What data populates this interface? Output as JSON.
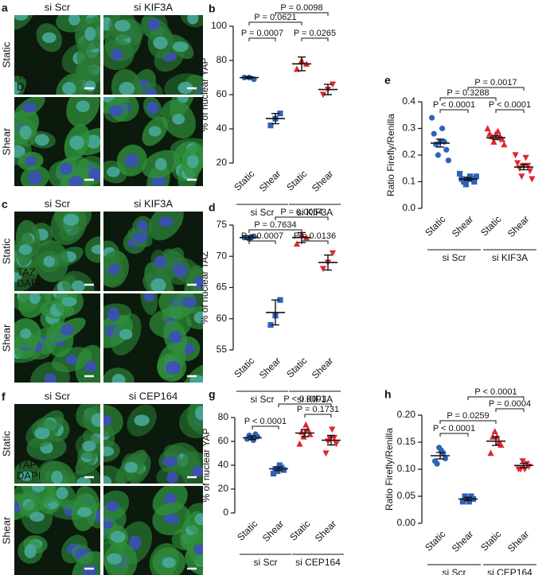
{
  "panels": [
    {
      "label": "a",
      "columns": [
        {
          "name": "si Scr",
          "color": "#3b6fc6"
        },
        {
          "name": "si KIF3A",
          "color": "#e0262f"
        }
      ],
      "rows": [
        "Static",
        "Shear"
      ],
      "stains": [
        {
          "name": "YAP",
          "color": "#86d44a"
        },
        {
          "name": "DAPI",
          "color": "#4f63e0"
        }
      ]
    },
    {
      "label": "c",
      "columns": [
        {
          "name": "si Scr",
          "color": "#3b6fc6"
        },
        {
          "name": "si KIF3A",
          "color": "#e0262f"
        }
      ],
      "rows": [
        "Static",
        "Shear"
      ],
      "stains": [
        {
          "name": "TAZ",
          "color": "#86d44a"
        },
        {
          "name": "DAPI",
          "color": "#4f63e0"
        }
      ]
    },
    {
      "label": "f",
      "columns": [
        {
          "name": "si Scr",
          "color": "#3b6fc6"
        },
        {
          "name": "si CEP164",
          "color": "#e0262f"
        }
      ],
      "rows": [
        "Static",
        "Shear"
      ],
      "stains": [
        {
          "name": "YAP",
          "color": "#86d44a"
        },
        {
          "name": "DAPI",
          "color": "#4f63e0"
        }
      ]
    }
  ],
  "chart_data": [
    {
      "type": "scatter",
      "label": "b",
      "ylabel": "% of nuclear YAP",
      "ylim": [
        20,
        100
      ],
      "yticks": [
        20,
        40,
        60,
        80,
        100
      ],
      "conditions": [
        {
          "name": "si Scr",
          "color": "#3b6fc6"
        },
        {
          "name": "si KIF3A",
          "color": "#e0262f"
        }
      ],
      "groups": [
        {
          "category": "Static",
          "color": "#2e63b8",
          "marker": "circle",
          "points": [
            70,
            70,
            69
          ],
          "mean": 70,
          "error": 0.5
        },
        {
          "category": "Shear",
          "color": "#2e63b8",
          "marker": "square",
          "points": [
            42,
            46,
            49
          ],
          "mean": 46,
          "error": 3
        },
        {
          "category": "Static",
          "color": "#e0262f",
          "marker": "triangle",
          "points": [
            75,
            80,
            78
          ],
          "mean": 78,
          "error": 4
        },
        {
          "category": "Shear",
          "color": "#e0262f",
          "marker": "triangle-down",
          "points": [
            60,
            63,
            66
          ],
          "mean": 63,
          "error": 3
        }
      ],
      "comparisons": [
        {
          "label": "P = 0.0007"
        },
        {
          "label": "P = 0.0621"
        },
        {
          "label": "P = 0.0098"
        },
        {
          "label": "P = 0.0265"
        }
      ]
    },
    {
      "type": "scatter",
      "label": "d",
      "ylabel": "% of nuclear TAZ",
      "ylim": [
        55,
        75
      ],
      "yticks": [
        55,
        60,
        65,
        70,
        75
      ],
      "conditions": [
        {
          "name": "si Scr",
          "color": "#3b6fc6"
        },
        {
          "name": "si KIF3A",
          "color": "#e0262f"
        }
      ],
      "groups": [
        {
          "category": "Static",
          "color": "#2e63b8",
          "marker": "circle",
          "points": [
            73,
            72.8,
            73.2
          ],
          "mean": 73,
          "error": 0.3
        },
        {
          "category": "Shear",
          "color": "#2e63b8",
          "marker": "square",
          "points": [
            59,
            60.5,
            63
          ],
          "mean": 61,
          "error": 2
        },
        {
          "category": "Static",
          "color": "#e0262f",
          "marker": "triangle",
          "points": [
            72,
            73.5,
            73
          ],
          "mean": 73,
          "error": 0.8
        },
        {
          "category": "Shear",
          "color": "#e0262f",
          "marker": "triangle-down",
          "points": [
            68,
            69,
            70.5
          ],
          "mean": 69,
          "error": 1.2
        }
      ],
      "comparisons": [
        {
          "label": "P = 0.0007"
        },
        {
          "label": "P = 0.7634"
        },
        {
          "label": "P = 0.0054"
        },
        {
          "label": "P = 0.0136"
        }
      ]
    },
    {
      "type": "scatter",
      "label": "e",
      "ylabel": "Ratio Firefly/Renilla",
      "ylim": [
        0,
        0.4
      ],
      "yticks": [
        {
          "value": 0,
          "label": "0.0"
        },
        0.1,
        0.2,
        0.3,
        0.4
      ],
      "conditions": [
        {
          "name": "si Scr",
          "color": "#3b6fc6"
        },
        {
          "name": "si KIF3A",
          "color": "#e0262f"
        }
      ],
      "groups": [
        {
          "category": "Static",
          "color": "#2e63b8",
          "marker": "circle",
          "points": [
            0.34,
            0.3,
            0.28,
            0.25,
            0.24,
            0.22,
            0.2,
            0.18,
            0.25
          ],
          "mean": 0.245,
          "error": 0.015
        },
        {
          "category": "Shear",
          "color": "#2e63b8",
          "marker": "square",
          "points": [
            0.13,
            0.12,
            0.11,
            0.11,
            0.1,
            0.1,
            0.09,
            0.12,
            0.11
          ],
          "mean": 0.11,
          "error": 0.005
        },
        {
          "category": "Static",
          "color": "#e0262f",
          "marker": "triangle",
          "points": [
            0.3,
            0.29,
            0.28,
            0.27,
            0.27,
            0.26,
            0.25,
            0.24,
            0.28
          ],
          "mean": 0.265,
          "error": 0.007
        },
        {
          "category": "Shear",
          "color": "#e0262f",
          "marker": "triangle-down",
          "points": [
            0.2,
            0.19,
            0.17,
            0.16,
            0.15,
            0.14,
            0.12,
            0.11,
            0.16
          ],
          "mean": 0.155,
          "error": 0.01
        }
      ],
      "comparisons": [
        {
          "label": "P < 0.0001"
        },
        {
          "label": "P = 0.3288"
        },
        {
          "label": "P = 0.0017"
        },
        {
          "label": "P < 0.0001"
        }
      ]
    },
    {
      "type": "scatter",
      "label": "g",
      "ylabel": "% of nuclear YAP",
      "ylim": [
        0,
        80
      ],
      "yticks": [
        0,
        20,
        40,
        60,
        80
      ],
      "conditions": [
        {
          "name": "si Scr",
          "color": "#3b6fc6"
        },
        {
          "name": "si CEP164",
          "color": "#e0262f"
        }
      ],
      "groups": [
        {
          "category": "Static",
          "color": "#2e63b8",
          "marker": "circle",
          "points": [
            62,
            64,
            66,
            61,
            63,
            65
          ],
          "mean": 63,
          "error": 1.5
        },
        {
          "category": "Shear",
          "color": "#2e63b8",
          "marker": "square",
          "points": [
            33,
            36,
            38,
            40,
            35,
            37
          ],
          "mean": 37,
          "error": 1.5
        },
        {
          "category": "Static",
          "color": "#e0262f",
          "marker": "triangle",
          "points": [
            58,
            66,
            70,
            74,
            64,
            68
          ],
          "mean": 67,
          "error": 3
        },
        {
          "category": "Shear",
          "color": "#e0262f",
          "marker": "triangle-down",
          "points": [
            50,
            58,
            63,
            70,
            62,
            60
          ],
          "mean": 61,
          "error": 4
        }
      ],
      "comparisons": [
        {
          "label": "P < 0.0001"
        },
        {
          "label": "P < 0.0001"
        },
        {
          "label": "P = 0.1731"
        }
      ]
    },
    {
      "type": "scatter",
      "label": "h",
      "ylabel": "Ratio Firefly/Renilla",
      "ylim": [
        0,
        0.2
      ],
      "yticks": [
        {
          "value": 0,
          "label": "0.00"
        },
        {
          "value": 0.05,
          "label": "0.05"
        },
        {
          "value": 0.1,
          "label": "0.10"
        },
        {
          "value": 0.15,
          "label": "0.15"
        },
        {
          "value": 0.2,
          "label": "0.20"
        }
      ],
      "conditions": [
        {
          "name": "si Scr",
          "color": "#3b6fc6"
        },
        {
          "name": "si CEP164",
          "color": "#e0262f"
        }
      ],
      "groups": [
        {
          "category": "Static",
          "color": "#2e63b8",
          "marker": "circle",
          "points": [
            0.115,
            0.12,
            0.13,
            0.135,
            0.14,
            0.11
          ],
          "mean": 0.125,
          "error": 0.006
        },
        {
          "category": "Shear",
          "color": "#2e63b8",
          "marker": "square",
          "points": [
            0.04,
            0.045,
            0.05,
            0.04,
            0.045,
            0.05
          ],
          "mean": 0.045,
          "error": 0.003
        },
        {
          "category": "Static",
          "color": "#e0262f",
          "marker": "triangle",
          "points": [
            0.13,
            0.145,
            0.15,
            0.16,
            0.17,
            0.16
          ],
          "mean": 0.152,
          "error": 0.008
        },
        {
          "category": "Shear",
          "color": "#e0262f",
          "marker": "triangle-down",
          "points": [
            0.1,
            0.105,
            0.11,
            0.1,
            0.115,
            0.1
          ],
          "mean": 0.107,
          "error": 0.004
        }
      ],
      "comparisons": [
        {
          "label": "P < 0.0001"
        },
        {
          "label": "P = 0.0259"
        },
        {
          "label": "P < 0.0001"
        },
        {
          "label": "P = 0.0004"
        }
      ]
    }
  ]
}
